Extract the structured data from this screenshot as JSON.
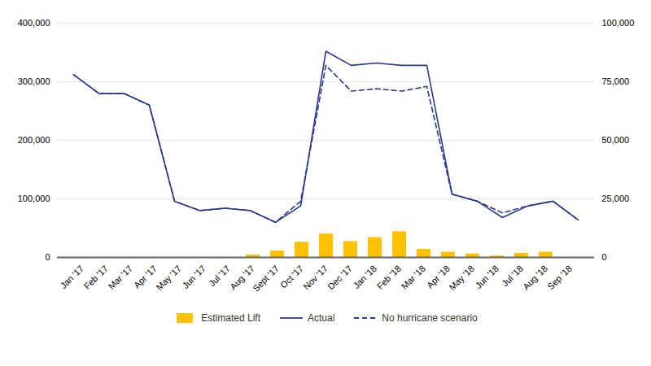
{
  "chart_data": {
    "type": "bar",
    "categories": [
      "Jan '17",
      "Feb '17",
      "Mar '17",
      "Apr '17",
      "May '17",
      "Jun '17",
      "Jul '17",
      "Aug '17",
      "Sept '17",
      "Oct '17",
      "Nov '17",
      "Dec '17",
      "Jan '18",
      "Feb '18",
      "Mar '18",
      "Apr '18",
      "May '18",
      "Jun '18",
      "Jul '18",
      "Aug '18",
      "Sep '18"
    ],
    "series": [
      {
        "name": "Estimated Lift",
        "type": "bar",
        "color": "#FFC200",
        "values": [
          0,
          0,
          0,
          0,
          0,
          0,
          0,
          4000,
          11000,
          26000,
          40000,
          27000,
          34000,
          44000,
          14000,
          9000,
          6000,
          2500,
          7000,
          9000,
          0
        ]
      },
      {
        "name": "Actual",
        "type": "line",
        "axis": "y2",
        "color": "#2D3A8C",
        "line_style": "solid",
        "values": [
          78000,
          70000,
          70000,
          65000,
          24000,
          20000,
          21000,
          20000,
          15000,
          22000,
          88000,
          82000,
          83000,
          82000,
          82000,
          27000,
          24000,
          17000,
          22000,
          24000,
          16000
        ]
      },
      {
        "name": "No hurricane scenario",
        "type": "line",
        "axis": "y2",
        "color": "#2D3A8C",
        "line_style": "dashed",
        "values": [
          78000,
          70000,
          70000,
          65000,
          24000,
          20000,
          21000,
          20000,
          15000,
          24000,
          82000,
          71000,
          72000,
          71000,
          73000,
          27000,
          24000,
          19000,
          22000,
          24000,
          16000
        ]
      }
    ],
    "ylim": [
      0,
      400000
    ],
    "yticks": [
      0,
      {
        "value": 100000,
        "label": "100,000"
      },
      {
        "value": 200000,
        "label": "200,000"
      },
      {
        "value": 300000,
        "label": "300,000"
      },
      {
        "value": 400000,
        "label": "400,000"
      }
    ],
    "y2lim": [
      0,
      100000
    ],
    "y2ticks": [
      0,
      {
        "value": 25000,
        "label": "25,000"
      },
      {
        "value": 50000,
        "label": "50,000"
      },
      {
        "value": 75000,
        "label": "75,000"
      },
      {
        "value": 100000,
        "label": "100,000"
      }
    ],
    "grid": true,
    "legend": "bottom"
  }
}
